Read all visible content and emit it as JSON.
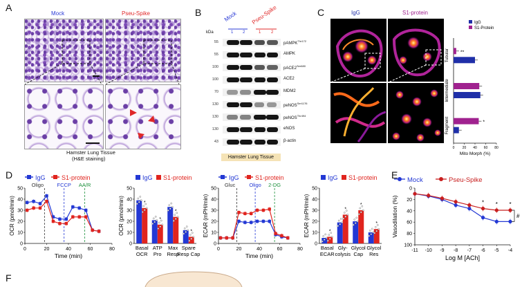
{
  "panel_letters": {
    "a": "A",
    "b": "B",
    "c": "C",
    "d": "D",
    "e": "E",
    "f": "F"
  },
  "panel_a": {
    "mock_label": "Mock",
    "pseu_label": "Pseu-Spike",
    "caption_line1": "Hamster Lung Tissue",
    "caption_line2": "(H&E staining)",
    "colors": {
      "mock": "#2b3bd6",
      "pseu": "#e02828",
      "arrow": "#e02828"
    }
  },
  "panel_b": {
    "mock_label": "Mock",
    "pseu_label": "Pseu-Spike",
    "lane_numbers": [
      "1",
      "2",
      "1",
      "2"
    ],
    "kda_header": "kDa",
    "rows": [
      {
        "kda": "55",
        "label": "pAMPK",
        "sup": "Thr172"
      },
      {
        "kda": "55",
        "label": "AMPK",
        "sup": ""
      },
      {
        "kda": "100",
        "label": "pACE2",
        "sup": "Ser680"
      },
      {
        "kda": "100",
        "label": "ACE2",
        "sup": ""
      },
      {
        "kda": "70",
        "label": "MDM2",
        "sup": ""
      },
      {
        "kda": "130",
        "label": "peNOS",
        "sup": "Ser1176"
      },
      {
        "kda": "130",
        "label": "peNOS",
        "sup": "Thr494"
      },
      {
        "kda": "130",
        "label": "eNOS",
        "sup": ""
      },
      {
        "kda": "43",
        "label": "β-actin",
        "sup": ""
      }
    ],
    "footer": "Hamster Lung Tissue"
  },
  "panel_c": {
    "col_igg": "IgG",
    "col_s1": "S1-protein",
    "row_labels": [
      "Tubular",
      "Intermediate",
      "Fragment"
    ],
    "legend": [
      "IgG",
      "S1-Protein"
    ],
    "xlabel": "Mito Morph (%)",
    "xticks": [
      "0",
      "20",
      "40",
      "60",
      "80"
    ],
    "colors": {
      "igg": "#1f2fa8",
      "s1": "#a0228f"
    }
  },
  "chart_data": [
    {
      "id": "C-bar",
      "type": "bar",
      "orientation": "horizontal",
      "categories": [
        "Tubular",
        "Intermediate",
        "Fragment"
      ],
      "series": [
        {
          "name": "IgG",
          "values": [
            40,
            50,
            10
          ]
        },
        {
          "name": "S1-Protein",
          "values": [
            5,
            48,
            47
          ]
        }
      ],
      "xlabel": "Mito Morph (%)",
      "xlim": [
        0,
        80
      ],
      "annotations": [
        "**",
        "*"
      ]
    },
    {
      "id": "D-OCR",
      "type": "line",
      "xlabel": "Time (min)",
      "ylabel": "OCR (pmol/min)",
      "ylim": [
        0,
        50
      ],
      "yticks": [
        0,
        10,
        20,
        30,
        40,
        50
      ],
      "xticks": [
        0,
        20,
        40,
        60,
        80
      ],
      "annotations": [
        "Oligo",
        "FCCP",
        "AA/R"
      ],
      "series": [
        {
          "name": "IgG",
          "x": [
            2,
            8,
            14,
            20,
            26,
            32,
            38,
            44,
            50,
            56,
            62,
            68
          ],
          "values": [
            37,
            38,
            36,
            43,
            24,
            22,
            22,
            33,
            32,
            30,
            12,
            11
          ]
        },
        {
          "name": "S1-protein",
          "x": [
            2,
            8,
            14,
            20,
            26,
            32,
            38,
            44,
            50,
            56,
            62,
            68
          ],
          "values": [
            30,
            32,
            32,
            38,
            20,
            18,
            18,
            24,
            24,
            24,
            12,
            11
          ]
        }
      ]
    },
    {
      "id": "D-OCR-bar",
      "type": "bar",
      "categories": [
        "Basal OCR",
        "ATP Pro",
        "Max Resp",
        "Spare Resp Cap"
      ],
      "ylabel": "OCR (pmol/min)",
      "ylim": [
        0,
        50
      ],
      "series": [
        {
          "name": "IgG",
          "values": [
            39,
            21,
            33,
            12
          ]
        },
        {
          "name": "S1-protein",
          "values": [
            32,
            17,
            24,
            6
          ]
        }
      ]
    },
    {
      "id": "D-ECAR",
      "type": "line",
      "xlabel": "Time (min)",
      "ylabel": "ECAR (mPH/min)",
      "ylim": [
        0,
        50
      ],
      "yticks": [
        0,
        10,
        20,
        30,
        40,
        50
      ],
      "xticks": [
        0,
        20,
        40,
        60,
        80
      ],
      "annotations": [
        "Gluc",
        "Oligo",
        "2-DG"
      ],
      "series": [
        {
          "name": "IgG",
          "x": [
            2,
            8,
            14,
            20,
            26,
            32,
            38,
            44,
            50,
            56,
            62,
            68
          ],
          "values": [
            5,
            5,
            5,
            20,
            19,
            19,
            20,
            20,
            20,
            8,
            6,
            5
          ]
        },
        {
          "name": "S1-protein",
          "x": [
            2,
            8,
            14,
            20,
            26,
            32,
            38,
            44,
            50,
            56,
            62,
            68
          ],
          "values": [
            5,
            5,
            5,
            28,
            27,
            27,
            30,
            30,
            31,
            9,
            7,
            5
          ]
        }
      ]
    },
    {
      "id": "D-ECAR-bar",
      "type": "bar",
      "categories": [
        "Basal ECAR",
        "Gly-colysis",
        "Glycol Cap",
        "Glycol Res"
      ],
      "ylabel": "ECAR (mPH/min)",
      "ylim": [
        0,
        50
      ],
      "series": [
        {
          "name": "IgG",
          "values": [
            5,
            19,
            20,
            10
          ]
        },
        {
          "name": "S1-protein",
          "values": [
            6,
            26,
            30,
            13
          ]
        }
      ]
    },
    {
      "id": "E",
      "type": "line",
      "xlabel": "Log M [ACh]",
      "ylabel": "Vasodilation (%)",
      "x": [
        -11,
        -10,
        -9,
        -8,
        -7,
        -6,
        -5,
        -4
      ],
      "xticks": [
        -11,
        -10,
        -9,
        -8,
        -7,
        -6,
        -5,
        -4
      ],
      "ylim": [
        0,
        100
      ],
      "yticks": [
        0,
        20,
        40,
        60,
        80,
        100
      ],
      "y_reversed": true,
      "series": [
        {
          "name": "Mock",
          "values": [
            10,
            14,
            20,
            30,
            36,
            52,
            59,
            59
          ]
        },
        {
          "name": "Pseu-Spike",
          "values": [
            10,
            13,
            18,
            24,
            30,
            36,
            39,
            39
          ]
        }
      ],
      "annotations": [
        "*",
        "*",
        "*",
        "#"
      ]
    }
  ],
  "panel_d": {
    "legend_igg": "IgG",
    "legend_s1": "S1-protein",
    "ocr_ylabel": "OCR (pmol/min)",
    "ecar_ylabel": "ECAR (mPH/min)",
    "xlabel": "Time (min)",
    "ocr_bar_cats": [
      [
        "Basal",
        "OCR"
      ],
      [
        "ATP",
        "Pro"
      ],
      [
        "Max",
        "Resp"
      ],
      [
        "Spare",
        "Resp Cap"
      ]
    ],
    "ecar_bar_cats": [
      [
        "Basal",
        "ECAR"
      ],
      [
        "Gly-",
        "colysis"
      ],
      [
        "Glycol",
        "Cap"
      ],
      [
        "Glycol",
        "Res"
      ]
    ],
    "ocr_injections": [
      "Oligo",
      "FCCP",
      "AA/R"
    ],
    "ecar_injections": [
      "Gluc",
      "Oligo",
      "2-DG"
    ],
    "colors": {
      "igg": "#2338d4",
      "s1": "#e0241e",
      "inj1": "#333333",
      "inj2": "#2338d4",
      "inj3": "#1a8f3a"
    }
  },
  "panel_e": {
    "legend_mock": "Mock",
    "legend_pseu": "Pseu-Spike",
    "ylabel": "Vasodilation (%)",
    "xlabel": "Log M [ACh]",
    "colors": {
      "mock": "#2338d4",
      "pseu": "#c81e1e"
    }
  }
}
